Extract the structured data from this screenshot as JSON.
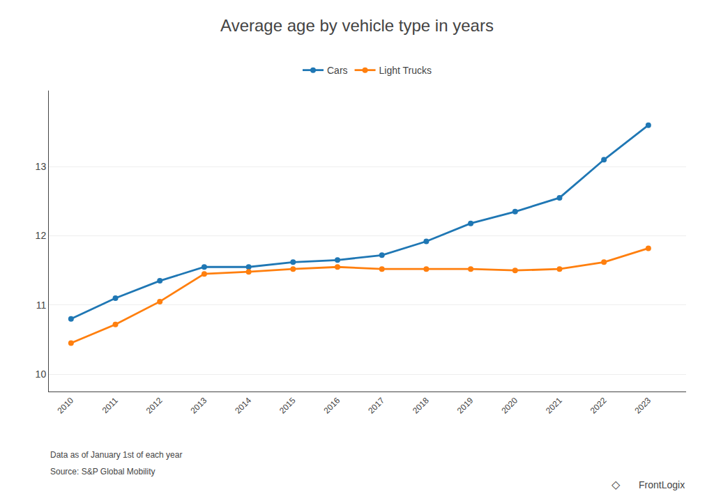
{
  "chart_data": {
    "type": "line",
    "title": "Average age by vehicle type in years",
    "x": [
      2010,
      2011,
      2012,
      2013,
      2014,
      2015,
      2016,
      2017,
      2018,
      2019,
      2020,
      2021,
      2022,
      2023
    ],
    "series": [
      {
        "name": "Cars",
        "values": [
          10.8,
          11.1,
          11.35,
          11.55,
          11.55,
          11.62,
          11.65,
          11.72,
          11.92,
          12.18,
          12.35,
          12.55,
          13.1,
          13.6
        ],
        "marker": "circle",
        "line_style": "solid"
      },
      {
        "name": "Light Trucks",
        "values": [
          10.45,
          10.72,
          11.05,
          11.45,
          11.48,
          11.52,
          11.55,
          11.52,
          11.52,
          11.52,
          11.5,
          11.52,
          11.62,
          11.82
        ],
        "marker": "circle",
        "line_style": "solid"
      }
    ],
    "xlim": [
      2009.5,
      2023.85
    ],
    "xticks": [
      2010,
      2011,
      2012,
      2013,
      2014,
      2015,
      2016,
      2017,
      2018,
      2019,
      2020,
      2021,
      2022,
      2023
    ],
    "ylim": [
      9.75,
      14.1
    ],
    "yticks": [
      10,
      11,
      12,
      13
    ],
    "grid": true,
    "legend": "top",
    "annotations": [
      "Data as of January 1st of each year",
      "Source: S&P Global Mobility",
      "◇",
      "FrontLogix"
    ]
  }
}
